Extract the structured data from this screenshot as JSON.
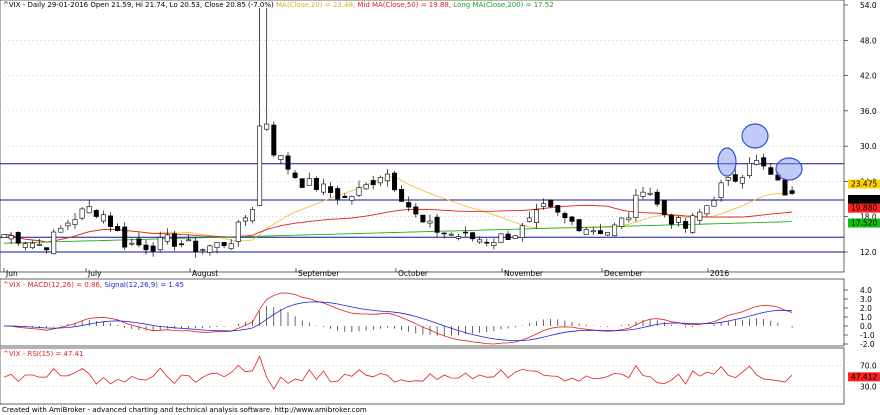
{
  "header": {
    "symbol_line": "^VIX - Daily 29-01-2016 Open 21.59, Hi 21.74, Lo 20.53, Close 20.85 (-7.0%)",
    "ma_short": "MA(Close,20) = 23.48,",
    "ma_mid": "Mid MA(Close,50) = 19.88,",
    "ma_long": "Long MA(Close,200) = 17.52"
  },
  "panels": {
    "macd_title": "^VIX - MACD(12,26) = 0.86,",
    "macd_signal": "Signal(12,26,9) = 1.45",
    "rsi_title": "^VIX - RSI(15) = 47.41"
  },
  "footer": "Created with AmiBroker - advanced charting and technical analysis software. http://www.amibroker.com",
  "price_axis": {
    "ticks": [
      "54.0",
      "48.0",
      "42.0",
      "36.0",
      "30.0",
      "24.0",
      "18.0",
      "12.0"
    ],
    "badges": [
      {
        "text": "23.475",
        "color": "#ffd400",
        "fg": "#000000",
        "value": 23.475
      },
      {
        "text": "20.85",
        "color": "#000000",
        "fg": "#ffffff",
        "value": 20.85
      },
      {
        "text": "19.880",
        "color": "#ff2020",
        "fg": "#ffffff",
        "value": 19.88
      },
      {
        "text": "17.520",
        "color": "#10c010",
        "fg": "#000000",
        "value": 17.52
      }
    ]
  },
  "macd_axis": {
    "ticks": [
      "4.0",
      "3.0",
      "2.0",
      "1.0",
      "0.0",
      "-1.0",
      "-2.0"
    ]
  },
  "rsi_axis": {
    "ticks": [
      "70.0",
      "30.0"
    ],
    "badge": {
      "text": "47.412",
      "color": "#ff2020",
      "fg": "#ffffff"
    }
  },
  "months": [
    "Jun",
    "July",
    "August",
    "September",
    "October",
    "November",
    "December",
    "2016"
  ],
  "colors": {
    "candle": "#000000",
    "ma_short": "#f0c040",
    "ma_mid": "#e02020",
    "ma_long": "#20b020",
    "hline": "#1010a0",
    "macd": "#e02020",
    "signal": "#2020e0",
    "rsi": "#e02020",
    "ellipse": "#3050d0"
  },
  "chart_data": {
    "type": "line",
    "title": "^VIX - Daily",
    "price_levels": [
      27.0,
      20.85,
      14.5,
      12.0
    ],
    "annotation_ellipses": 3
  }
}
